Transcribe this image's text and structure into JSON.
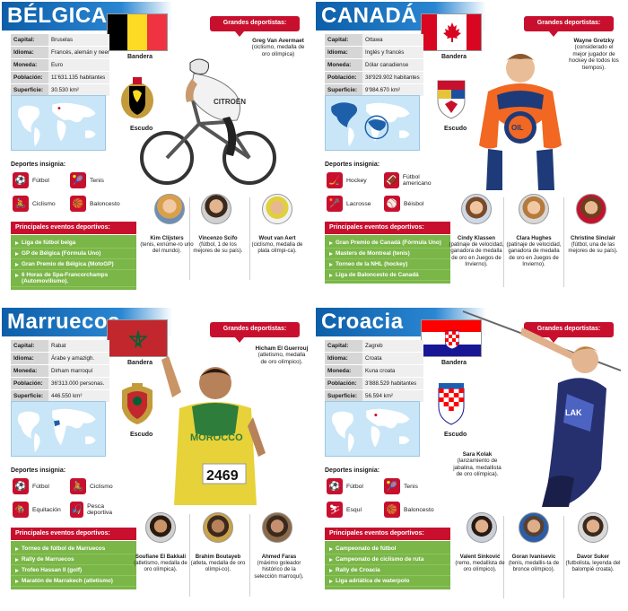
{
  "panels": [
    {
      "title": "BÉLGICA",
      "flag_label": "Bandera",
      "shield_label": "Escudo",
      "info": [
        {
          "k": "Capital:",
          "v": "Bruselas"
        },
        {
          "k": "Idioma:",
          "v": "Francés, alemán y neerlandés"
        },
        {
          "k": "Moneda:",
          "v": "Euro"
        },
        {
          "k": "Población:",
          "v": "11'631.135 habitantes"
        },
        {
          "k": "Superficie:",
          "v": "30.530 km²"
        }
      ],
      "sports_heading": "Deportes insignia:",
      "sports": [
        "Fútbol",
        "Tenis",
        "Ciclismo",
        "Baloncesto"
      ],
      "events_heading": "Principales eventos deportivos:",
      "events": [
        "Liga de fútbol belga",
        "GP de Bélgica (Fórmula Uno)",
        "Gran Premio de Bélgica (MotoGP)",
        "6 Horas de Spa-Francorchamps (Automovilismo)."
      ],
      "athletes_heading": "Grandes deportistas:",
      "hero": {
        "name": "Greg Van Avermaet",
        "desc": "(ciclismo, medalla de oro olímpica)"
      },
      "people": [
        {
          "name": "Kim Clijsters",
          "desc": "(tenis, exnúme-ro uno del mundo)."
        },
        {
          "name": "Vincenzo Scifo",
          "desc": "(fútbol, 1 de los mejores de su país)."
        },
        {
          "name": "Wout van Aert",
          "desc": "(ciclismo, medalla de plata olímpi-ca)."
        }
      ]
    },
    {
      "title": "CANADÁ",
      "flag_label": "Bandera",
      "shield_label": "Escudo",
      "info": [
        {
          "k": "Capital:",
          "v": "Ottawa"
        },
        {
          "k": "Idioma:",
          "v": "Inglés y francés"
        },
        {
          "k": "Moneda:",
          "v": "Dólar canadiense"
        },
        {
          "k": "Población:",
          "v": "38'929.902 habitantes"
        },
        {
          "k": "Superficie:",
          "v": "9'984.670 km²"
        }
      ],
      "sports_heading": "Deportes insignia:",
      "sports": [
        "Hockey",
        "Fútbol americano",
        "Lacrosse",
        "Béisbol"
      ],
      "events_heading": "Principales eventos deportivos:",
      "events": [
        "Gran Premio de Canadá (Fórmula Uno)",
        "Masters de Montreal (tenis)",
        "Torneo de la NHL (hockey)",
        "Liga de Baloncesto de Canadá"
      ],
      "athletes_heading": "Grandes deportistas:",
      "hero": {
        "name": "Wayne Gretzky",
        "desc": "(considerado el mejor jugador de hockey de todos los tiempos)."
      },
      "people": [
        {
          "name": "Cindy Klassen",
          "desc": "(patinaje de velocidad, ganadora de medalla de oro en Juegos de Invierno)."
        },
        {
          "name": "Clara Hughes",
          "desc": "(patinaje de velocidad, ganadora de medalla de oro en Juegos de Invierno)."
        },
        {
          "name": "Christine Sinclair",
          "desc": "(fútbol, una de las mejores de su país)."
        }
      ]
    },
    {
      "title": "Marruecos",
      "flag_label": "Bandera",
      "shield_label": "Escudo",
      "info": [
        {
          "k": "Capital:",
          "v": "Rabat"
        },
        {
          "k": "Idioma:",
          "v": "Árabe y amazigh."
        },
        {
          "k": "Moneda:",
          "v": "Dirham marroquí"
        },
        {
          "k": "Población:",
          "v": "36'313.000 personas."
        },
        {
          "k": "Superficie:",
          "v": "446.550 km²"
        }
      ],
      "sports_heading": "Deportes insignia:",
      "sports": [
        "Fútbol",
        "Ciclismo",
        "Equitación",
        "Pesca deportiva"
      ],
      "events_heading": "Principales eventos deportivos:",
      "events": [
        "Torneo de fútbol de Marruecos",
        "Rally de Marruecos",
        "Trofeo Hassan II (golf)",
        "Maratón de Marrakech (atletismo)"
      ],
      "athletes_heading": "Grandes deportistas:",
      "hero": {
        "name": "Hicham El Guerrouj",
        "desc": "(atletismo, medalla de oro olímpico)."
      },
      "bib": "2469",
      "jersey_text": "MOROCCO",
      "people": [
        {
          "name": "Soufiane El Bakkali",
          "desc": "(atletismo, medalla de oro olímpica)."
        },
        {
          "name": "Brahim Boutayeb",
          "desc": "(atleta, medalla de oro olímpi-co)."
        },
        {
          "name": "Ahmed Faras",
          "desc": "(máximo goleador histórico de la selección marroquí)."
        }
      ]
    },
    {
      "title": "Croacia",
      "flag_label": "Bandera",
      "shield_label": "Escudo",
      "info": [
        {
          "k": "Capital:",
          "v": "Zagreb"
        },
        {
          "k": "Idioma:",
          "v": "Croata"
        },
        {
          "k": "Moneda:",
          "v": "Kuna croata"
        },
        {
          "k": "Población:",
          "v": "3'888.529 habitantes"
        },
        {
          "k": "Superficie:",
          "v": "56.594 km²"
        }
      ],
      "sports_heading": "Deportes insignia:",
      "sports": [
        "Fútbol",
        "Tenis",
        "Esquí",
        "Baloncesto"
      ],
      "events_heading": "Principales eventos deportivos:",
      "events": [
        "Campeonato de fútbol",
        "Campeonato de ciclismo de ruta",
        "Rally de Croacia",
        "Liga adriática de waterpolo"
      ],
      "athletes_heading": "Grandes deportistas:",
      "hero": {
        "name": "Sara Kolak",
        "desc": "(lanzamiento de jabalina, medallista de oro olímpica)."
      },
      "people": [
        {
          "name": "Valent Sinković",
          "desc": "(remo, medallista de oro olímpico)."
        },
        {
          "name": "Goran Ivanisevic",
          "desc": "(tenis, medallis-ta de bronce olímpico)."
        },
        {
          "name": "Davor Suker",
          "desc": "(futbolista, leyenda del balompié croata)."
        }
      ]
    }
  ],
  "colors": {
    "accent": "#c8102e",
    "title_blue": "#0d5ea8",
    "events_green": "#7ab648",
    "map_sea": "#c8e6f7"
  }
}
